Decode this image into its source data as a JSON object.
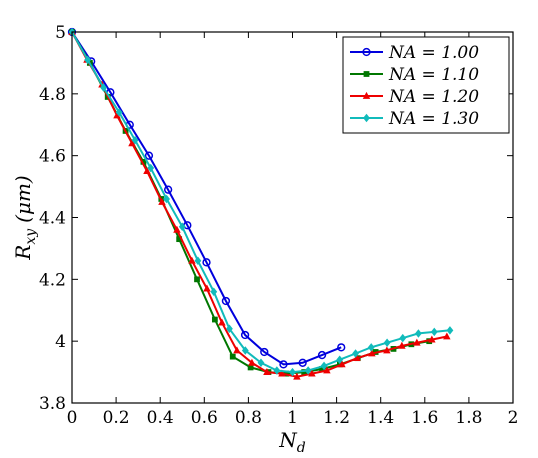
{
  "chart_data": {
    "type": "line",
    "xlabel": "N",
    "xlabel_sub": "d",
    "ylabel": "R",
    "ylabel_sub": "xy",
    "ylabel_unit": "(μm)",
    "xlim": [
      0,
      2
    ],
    "ylim": [
      3.8,
      5
    ],
    "xticks": [
      0,
      0.2,
      0.4,
      0.6,
      0.8,
      1,
      1.2,
      1.4,
      1.6,
      1.8,
      2
    ],
    "xtick_labels": [
      "0",
      "0.2",
      "0.4",
      "0.6",
      "0.8",
      "1",
      "1.2",
      "1.4",
      "1.6",
      "1.8",
      "2"
    ],
    "yticks": [
      3.8,
      4.0,
      4.2,
      4.4,
      4.6,
      4.8,
      5.0
    ],
    "ytick_labels": [
      "3.8",
      "4",
      "4.2",
      "4.4",
      "4.6",
      "4.8",
      "5"
    ],
    "grid": false,
    "legend_position": "top-right",
    "series": [
      {
        "name": "NA = 1.00",
        "color": "#0000dd",
        "marker": "circle",
        "x": [
          0.0,
          0.087,
          0.174,
          0.262,
          0.349,
          0.436,
          0.523,
          0.61,
          0.698,
          0.785,
          0.872,
          0.959,
          1.046,
          1.134,
          1.221
        ],
        "y": [
          5.0,
          4.905,
          4.805,
          4.7,
          4.6,
          4.49,
          4.375,
          4.255,
          4.13,
          4.02,
          3.965,
          3.925,
          3.93,
          3.955,
          3.98
        ]
      },
      {
        "name": "NA = 1.10",
        "color": "#007700",
        "marker": "square",
        "x": [
          0.0,
          0.081,
          0.162,
          0.243,
          0.324,
          0.405,
          0.486,
          0.567,
          0.648,
          0.729,
          0.81,
          0.891,
          0.972,
          1.053,
          1.134,
          1.215,
          1.296,
          1.377,
          1.458,
          1.539,
          1.62
        ],
        "y": [
          5.0,
          4.9,
          4.79,
          4.68,
          4.58,
          4.46,
          4.33,
          4.2,
          4.07,
          3.95,
          3.915,
          3.9,
          3.895,
          3.9,
          3.91,
          3.925,
          3.945,
          3.965,
          3.975,
          3.99,
          4.0
        ]
      },
      {
        "name": "NA = 1.20",
        "color": "#ee0000",
        "marker": "triangle",
        "x": [
          0.0,
          0.068,
          0.136,
          0.204,
          0.272,
          0.34,
          0.408,
          0.476,
          0.544,
          0.612,
          0.68,
          0.748,
          0.816,
          0.884,
          0.952,
          1.02,
          1.088,
          1.156,
          1.224,
          1.292,
          1.36,
          1.428,
          1.496,
          1.564,
          1.632,
          1.7
        ],
        "y": [
          5.0,
          4.91,
          4.83,
          4.73,
          4.64,
          4.55,
          4.45,
          4.36,
          4.26,
          4.17,
          4.06,
          3.97,
          3.93,
          3.9,
          3.895,
          3.885,
          3.895,
          3.905,
          3.925,
          3.945,
          3.96,
          3.97,
          3.985,
          3.995,
          4.005,
          4.015
        ]
      },
      {
        "name": "NA = 1.30",
        "color": "#11bbbb",
        "marker": "diamond",
        "x": [
          0.0,
          0.071,
          0.143,
          0.214,
          0.286,
          0.357,
          0.429,
          0.5,
          0.571,
          0.643,
          0.714,
          0.786,
          0.857,
          0.929,
          1.0,
          1.071,
          1.143,
          1.214,
          1.286,
          1.357,
          1.429,
          1.5,
          1.571,
          1.643,
          1.714
        ],
        "y": [
          5.0,
          4.91,
          4.82,
          4.74,
          4.65,
          4.56,
          4.46,
          4.37,
          4.26,
          4.16,
          4.04,
          3.97,
          3.93,
          3.905,
          3.9,
          3.905,
          3.92,
          3.94,
          3.96,
          3.98,
          3.995,
          4.01,
          4.025,
          4.03,
          4.035
        ]
      }
    ]
  }
}
